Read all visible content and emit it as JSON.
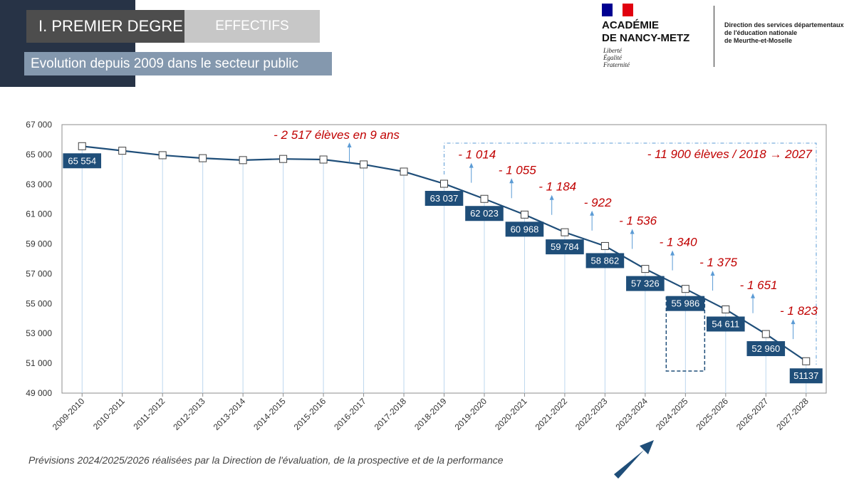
{
  "header": {
    "section_label": "I. PREMIER DEGRE",
    "category_label": "EFFECTIFS",
    "subtitle": "Evolution depuis 2009 dans le secteur public"
  },
  "logo": {
    "line1": "ACADÉMIE",
    "line2": "DE NANCY-METZ",
    "motto": [
      "Liberté",
      "Égalité",
      "Fraternité"
    ],
    "direction": [
      "Direction des services départementaux",
      "de l'éducation nationale",
      "de Meurthe-et-Moselle"
    ]
  },
  "colors": {
    "line": "#1f4e79",
    "label_bg": "#1f4e79",
    "annotation": "#c00000",
    "arrow": "#5b9bd5",
    "flag_blue": "#000091",
    "flag_red": "#e1000f"
  },
  "footnote": "Prévisions 2024/2025/2026 réalisées par la Direction de l'évaluation, de la prospective et de la performance",
  "chart_data": {
    "type": "line",
    "title": "",
    "xlabel": "",
    "ylabel": "",
    "ylim": [
      49000,
      67000
    ],
    "yticks": [
      {
        "value": 49000,
        "label": "49 000"
      },
      {
        "value": 51000,
        "label": "51 000"
      },
      {
        "value": 53000,
        "label": "53 000"
      },
      {
        "value": 55000,
        "label": "55 000"
      },
      {
        "value": 57000,
        "label": "57 000"
      },
      {
        "value": 59000,
        "label": "59 000"
      },
      {
        "value": 61000,
        "label": "61 000"
      },
      {
        "value": 63000,
        "label": "63 000"
      },
      {
        "value": 65000,
        "label": "65 000"
      },
      {
        "value": 67000,
        "label": "67 000"
      }
    ],
    "grid": false,
    "legend": "none",
    "categories": [
      "2009-2010",
      "2010-2011",
      "2011-2012",
      "2012-2013",
      "2013-2014",
      "2014-2015",
      "2015-2016",
      "2016-2017",
      "2017-2018",
      "2018-2019",
      "2019-2020",
      "2020-2021",
      "2021-2022",
      "2022-2023",
      "2023-2024",
      "2024-2025",
      "2025-2026",
      "2026-2027",
      "2027-2028"
    ],
    "values": [
      65554,
      65250,
      64950,
      64750,
      64620,
      64700,
      64660,
      64330,
      63850,
      63037,
      62023,
      60968,
      59784,
      58862,
      57326,
      55986,
      54611,
      52960,
      51137
    ],
    "data_labels": [
      {
        "index": 0,
        "text": "65 554"
      },
      {
        "index": 9,
        "text": "63 037"
      },
      {
        "index": 10,
        "text": "62 023"
      },
      {
        "index": 11,
        "text": "60 968"
      },
      {
        "index": 12,
        "text": "59 784"
      },
      {
        "index": 13,
        "text": "58 862"
      },
      {
        "index": 14,
        "text": "57 326"
      },
      {
        "index": 15,
        "text": "55 986"
      },
      {
        "index": 16,
        "text": "54 611"
      },
      {
        "index": 17,
        "text": "52 960"
      },
      {
        "index": 18,
        "text": "51137"
      }
    ],
    "annotations": [
      {
        "text": "- 2 517 élèves en 9 ans",
        "index": 7
      },
      {
        "text": "- 11 900 élèves / 2018 → 2027",
        "index": 18
      },
      {
        "text": "- 1 014",
        "index": 9.5
      },
      {
        "text": "- 1 055",
        "index": 10.5
      },
      {
        "text": "- 1 184",
        "index": 11.5
      },
      {
        "text": "- 922",
        "index": 12.5
      },
      {
        "text": "- 1 536",
        "index": 13.5
      },
      {
        "text": "- 1 340",
        "index": 14.5
      },
      {
        "text": "- 1 375",
        "index": 15.5
      },
      {
        "text": "- 1 651",
        "index": 16.5
      },
      {
        "text": "- 1 823",
        "index": 17.5
      }
    ],
    "highlight_index": 15
  }
}
